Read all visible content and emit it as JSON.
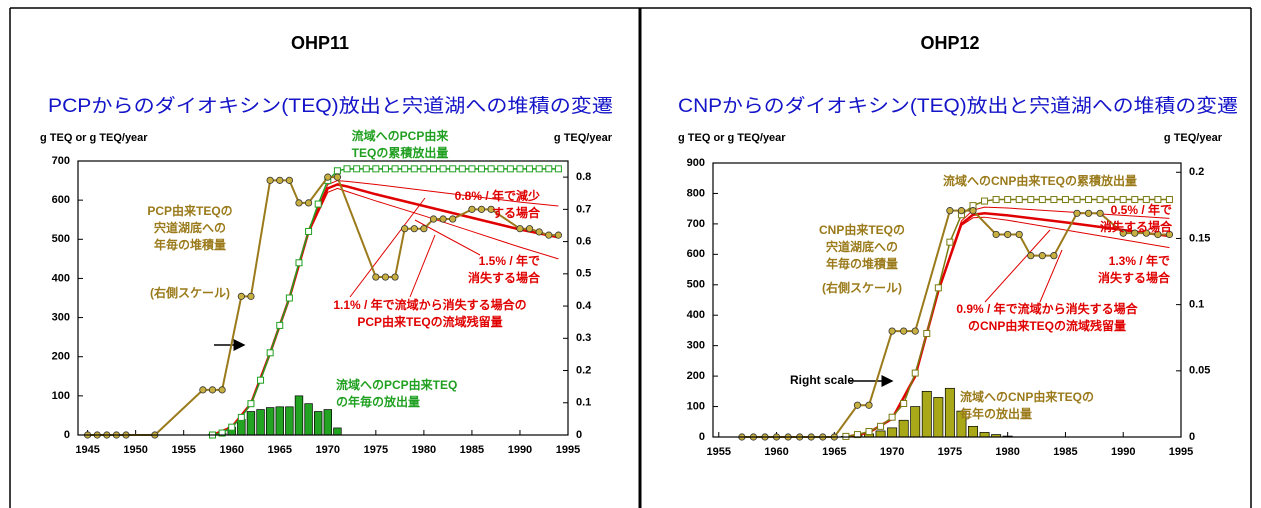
{
  "chart_data": [
    {
      "type": "combo",
      "heading": "OHP11",
      "title": "PCPからのダイオキシン(TEQ)放出と宍道湖への堆積の変遷",
      "ylabel": "g TEQ or g TEQ/year",
      "y2label": "g TEQ/year",
      "xlim": [
        1944,
        1995
      ],
      "xticks": [
        1945,
        1950,
        1955,
        1960,
        1965,
        1970,
        1975,
        1980,
        1985,
        1990,
        1995
      ],
      "ylim": [
        0,
        700
      ],
      "yticks": [
        0,
        100,
        200,
        300,
        400,
        500,
        600,
        700
      ],
      "y2lim": [
        0,
        0.85
      ],
      "y2ticks": [
        0,
        0.1,
        0.2,
        0.3,
        0.4,
        0.5,
        0.6,
        0.7,
        0.8
      ],
      "series": [
        {
          "kind": "bar",
          "color": "#22a322",
          "x": [
            1958,
            1959,
            1960,
            1961,
            1962,
            1963,
            1964,
            1965,
            1966,
            1967,
            1968,
            1969,
            1970,
            1971
          ],
          "values": [
            2,
            5,
            20,
            40,
            60,
            65,
            70,
            72,
            72,
            100,
            80,
            60,
            65,
            18
          ]
        },
        {
          "kind": "line",
          "color": "#e00000",
          "width": 1,
          "x": [
            1958,
            1960,
            1962,
            1964,
            1966,
            1968,
            1970,
            1971,
            1972,
            1975,
            1980,
            1985,
            1990,
            1994
          ],
          "values": [
            0,
            20,
            80,
            210,
            350,
            525,
            640,
            650,
            648,
            640,
            625,
            610,
            595,
            585
          ]
        },
        {
          "kind": "line",
          "color": "#e00000",
          "width": 1,
          "x": [
            1958,
            1960,
            1962,
            1964,
            1966,
            1968,
            1970,
            1971,
            1972,
            1975,
            1980,
            1985,
            1990,
            1994
          ],
          "values": [
            0,
            20,
            80,
            210,
            350,
            515,
            620,
            630,
            622,
            598,
            560,
            520,
            480,
            450
          ]
        },
        {
          "kind": "line",
          "color": "#e00000",
          "width": 2.5,
          "x": [
            1958,
            1960,
            1962,
            1964,
            1966,
            1968,
            1970,
            1971,
            1972,
            1975,
            1980,
            1985,
            1990,
            1994
          ],
          "values": [
            0,
            20,
            80,
            210,
            350,
            520,
            630,
            640,
            635,
            615,
            585,
            555,
            525,
            505
          ]
        },
        {
          "kind": "line",
          "color": "#20a020",
          "width": 1.5,
          "marker": "square",
          "x": [
            1958,
            1959,
            1960,
            1961,
            1962,
            1963,
            1964,
            1965,
            1966,
            1967,
            1968,
            1969,
            1970,
            1971,
            1972,
            1973,
            1974,
            1975,
            1976,
            1977,
            1978,
            1979,
            1980,
            1981,
            1982,
            1983,
            1984,
            1985,
            1986,
            1987,
            1988,
            1989,
            1990,
            1991,
            1992,
            1993,
            1994
          ],
          "values": [
            0,
            5,
            20,
            45,
            80,
            140,
            210,
            280,
            350,
            440,
            520,
            590,
            650,
            675,
            680,
            680,
            680,
            680,
            680,
            680,
            680,
            680,
            680,
            680,
            680,
            680,
            680,
            680,
            680,
            680,
            680,
            680,
            680,
            680,
            680,
            680,
            680
          ]
        },
        {
          "kind": "line",
          "color": "#9a7a1a",
          "width": 2,
          "marker": "circle",
          "axis": "y2",
          "x": [
            1945,
            1946,
            1947,
            1948,
            1949,
            1952,
            1957,
            1958,
            1959,
            1961,
            1962,
            1964,
            1965,
            1966,
            1967,
            1968,
            1970,
            1971,
            1975,
            1976,
            1977,
            1978,
            1979,
            1980,
            1981,
            1982,
            1983,
            1985,
            1986,
            1987,
            1990,
            1991,
            1992,
            1993,
            1994
          ],
          "values": [
            0,
            0,
            0,
            0,
            0,
            0,
            0.14,
            0.14,
            0.14,
            0.43,
            0.43,
            0.79,
            0.79,
            0.79,
            0.72,
            0.72,
            0.8,
            0.8,
            0.49,
            0.49,
            0.49,
            0.64,
            0.64,
            0.64,
            0.67,
            0.67,
            0.67,
            0.7,
            0.7,
            0.7,
            0.64,
            0.64,
            0.63,
            0.62,
            0.62
          ]
        }
      ],
      "annotations": [
        {
          "color": "#9a7a1a",
          "lines": [
            "PCP由来TEQの",
            "宍道湖底への",
            "年毎の堆積量"
          ]
        },
        {
          "color": "#9a7a1a",
          "lines": [
            "(右側スケール)"
          ]
        },
        {
          "color": "#20a020",
          "lines": [
            "流域へのPCP由来",
            "TEQの累積放出量"
          ]
        },
        {
          "color": "#e00000",
          "lines": [
            "0.8% / 年で減少",
            "する場合"
          ]
        },
        {
          "color": "#e00000",
          "lines": [
            "1.5% / 年で",
            "消失する場合"
          ]
        },
        {
          "color": "#e00000",
          "lines": [
            "1.1% / 年で流域から消失する場合の",
            "PCP由来TEQの流域残留量"
          ]
        },
        {
          "color": "#20a020",
          "lines": [
            "流域へのPCP由来TEQ",
            "の年毎の放出量"
          ]
        }
      ]
    },
    {
      "type": "combo",
      "heading": "OHP12",
      "title": "CNPからのダイオキシン(TEQ)放出と宍道湖への堆積の変遷",
      "ylabel": "g TEQ or g TEQ/year",
      "y2label": "g TEQ/year",
      "xlim": [
        1954.5,
        1995
      ],
      "xticks": [
        1955,
        1960,
        1965,
        1970,
        1975,
        1980,
        1985,
        1990,
        1995
      ],
      "ylim": [
        0,
        900
      ],
      "yticks": [
        0,
        100,
        200,
        300,
        400,
        500,
        600,
        700,
        800,
        900
      ],
      "y2lim": [
        0,
        0.207
      ],
      "y2ticks": [
        0,
        0.05,
        0.1,
        0.15,
        0.2
      ],
      "series": [
        {
          "kind": "bar",
          "color": "#a8a818",
          "x": [
            1966,
            1967,
            1968,
            1969,
            1970,
            1971,
            1972,
            1973,
            1974,
            1975,
            1976,
            1977,
            1978,
            1979,
            1980
          ],
          "values": [
            2,
            5,
            10,
            20,
            30,
            55,
            100,
            150,
            130,
            160,
            85,
            35,
            15,
            8,
            3
          ]
        },
        {
          "kind": "line",
          "color": "#e00000",
          "width": 1,
          "x": [
            1966,
            1968,
            1970,
            1972,
            1974,
            1976,
            1977,
            1978,
            1980,
            1985,
            1990,
            1994
          ],
          "values": [
            0,
            15,
            60,
            205,
            485,
            710,
            745,
            755,
            752,
            740,
            728,
            718
          ]
        },
        {
          "kind": "line",
          "color": "#e00000",
          "width": 1,
          "x": [
            1966,
            1968,
            1970,
            1972,
            1974,
            1976,
            1977,
            1978,
            1980,
            1985,
            1990,
            1994
          ],
          "values": [
            0,
            15,
            58,
            195,
            475,
            695,
            720,
            722,
            712,
            680,
            648,
            622
          ]
        },
        {
          "kind": "line",
          "color": "#e00000",
          "width": 2.5,
          "x": [
            1966,
            1968,
            1970,
            1972,
            1974,
            1976,
            1977,
            1978,
            1980,
            1985,
            1990,
            1994
          ],
          "values": [
            0,
            15,
            60,
            200,
            480,
            700,
            730,
            735,
            728,
            705,
            680,
            660
          ]
        },
        {
          "kind": "line",
          "color": "#7a7a10",
          "width": 1.5,
          "marker": "square",
          "x": [
            1966,
            1967,
            1968,
            1969,
            1970,
            1971,
            1972,
            1973,
            1974,
            1975,
            1976,
            1977,
            1978,
            1979,
            1980,
            1981,
            1982,
            1983,
            1984,
            1985,
            1986,
            1987,
            1988,
            1989,
            1990,
            1991,
            1992,
            1993,
            1994
          ],
          "values": [
            2,
            8,
            18,
            35,
            65,
            110,
            210,
            340,
            490,
            640,
            730,
            760,
            775,
            780,
            780,
            780,
            780,
            780,
            780,
            780,
            780,
            780,
            780,
            780,
            780,
            780,
            780,
            780,
            780
          ]
        },
        {
          "kind": "line",
          "color": "#9a7a1a",
          "width": 2,
          "marker": "circle",
          "axis": "y2",
          "x": [
            1957,
            1958,
            1959,
            1960,
            1961,
            1962,
            1963,
            1964,
            1965,
            1967,
            1968,
            1970,
            1971,
            1972,
            1975,
            1976,
            1977,
            1979,
            1980,
            1981,
            1982,
            1983,
            1984,
            1986,
            1987,
            1988,
            1990,
            1991,
            1992,
            1993,
            1994
          ],
          "values": [
            0,
            0,
            0,
            0,
            0,
            0,
            0,
            0,
            0,
            0.024,
            0.024,
            0.08,
            0.08,
            0.08,
            0.171,
            0.171,
            0.171,
            0.153,
            0.153,
            0.153,
            0.137,
            0.137,
            0.137,
            0.169,
            0.169,
            0.169,
            0.154,
            0.154,
            0.154,
            0.153,
            0.153
          ]
        }
      ],
      "annotations": [
        {
          "color": "#9a7a1a",
          "lines": [
            "流域へのCNP由来TEQの累積放出量"
          ]
        },
        {
          "color": "#9a7a1a",
          "lines": [
            "CNP由来TEQの",
            "宍道湖底への",
            "年毎の堆積量"
          ]
        },
        {
          "color": "#9a7a1a",
          "lines": [
            "(右側スケール)"
          ]
        },
        {
          "color": "#e00000",
          "lines": [
            "0.5% / 年で",
            "消失する場合"
          ]
        },
        {
          "color": "#e00000",
          "lines": [
            "1.3% / 年で",
            "消失する場合"
          ]
        },
        {
          "color": "#e00000",
          "lines": [
            "0.9% / 年で流域から消失する場合",
            "のCNP由来TEQの流域残留量"
          ]
        },
        {
          "color": "#9a7a1a",
          "lines": [
            "流域へのCNP由来TEQの",
            "毎年の放出量"
          ]
        },
        {
          "color": "#000000",
          "lines": [
            "Right scale"
          ]
        }
      ]
    }
  ]
}
